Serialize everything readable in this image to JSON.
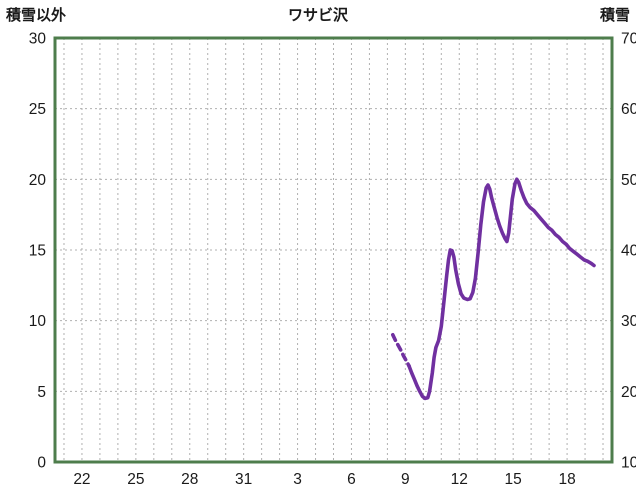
{
  "chart_data": {
    "type": "line",
    "title": "ワサビ沢",
    "left_axis_label": "積雪以外",
    "right_axis_label": "積雪",
    "x_domain": [
      20.5,
      51.5
    ],
    "x_grid_step": 1,
    "x_ticks": [
      22,
      25,
      28,
      31,
      34,
      37,
      40,
      43,
      46,
      49
    ],
    "x_tick_labels": [
      "22",
      "25",
      "28",
      "31",
      "3",
      "6",
      "9",
      "12",
      "15",
      "18"
    ],
    "y_left": {
      "min": 0,
      "max": 30,
      "tick_step": 5,
      "tick_labels": [
        "0",
        "5",
        "10",
        "15",
        "20",
        "25",
        "30"
      ]
    },
    "y_right": {
      "min": 10,
      "max": 70,
      "tick_step": 10,
      "tick_labels": [
        "10",
        "20",
        "30",
        "40",
        "50",
        "60",
        "70"
      ]
    },
    "colors": {
      "border": "#4e7d4c",
      "grid": "#b0b0b0",
      "line": "#7030A0",
      "text": "#1a1a1a",
      "background": "#ffffff"
    },
    "series": [
      {
        "name": "積雪-lead-in",
        "style": "dashed",
        "color": "#7030A0",
        "points": [
          [
            39.3,
            9.0
          ],
          [
            39.45,
            8.6
          ],
          [
            39.6,
            8.25
          ],
          [
            39.75,
            7.9
          ],
          [
            39.9,
            7.5
          ],
          [
            40.05,
            7.15
          ],
          [
            40.2,
            6.8
          ]
        ]
      },
      {
        "name": "積雪",
        "style": "solid",
        "color": "#7030A0",
        "points": [
          [
            40.2,
            6.8
          ],
          [
            40.35,
            6.3
          ],
          [
            40.5,
            5.85
          ],
          [
            40.65,
            5.4
          ],
          [
            40.8,
            5.0
          ],
          [
            40.95,
            4.65
          ],
          [
            41.1,
            4.5
          ],
          [
            41.25,
            4.55
          ],
          [
            41.35,
            5.0
          ],
          [
            41.5,
            6.3
          ],
          [
            41.6,
            7.4
          ],
          [
            41.7,
            8.1
          ],
          [
            41.85,
            8.6
          ],
          [
            42.0,
            9.6
          ],
          [
            42.1,
            10.8
          ],
          [
            42.2,
            12.0
          ],
          [
            42.3,
            13.2
          ],
          [
            42.4,
            14.3
          ],
          [
            42.5,
            15.0
          ],
          [
            42.6,
            14.95
          ],
          [
            42.7,
            14.5
          ],
          [
            42.8,
            13.6
          ],
          [
            42.95,
            12.6
          ],
          [
            43.1,
            11.9
          ],
          [
            43.25,
            11.6
          ],
          [
            43.45,
            11.5
          ],
          [
            43.6,
            11.55
          ],
          [
            43.75,
            12.0
          ],
          [
            43.9,
            13.0
          ],
          [
            44.05,
            14.8
          ],
          [
            44.2,
            16.8
          ],
          [
            44.35,
            18.4
          ],
          [
            44.5,
            19.4
          ],
          [
            44.6,
            19.6
          ],
          [
            44.7,
            19.3
          ],
          [
            44.8,
            18.7
          ],
          [
            44.95,
            18.0
          ],
          [
            45.1,
            17.3
          ],
          [
            45.25,
            16.7
          ],
          [
            45.4,
            16.2
          ],
          [
            45.55,
            15.8
          ],
          [
            45.65,
            15.6
          ],
          [
            45.75,
            16.2
          ],
          [
            45.85,
            17.4
          ],
          [
            45.95,
            18.6
          ],
          [
            46.1,
            19.7
          ],
          [
            46.2,
            20.0
          ],
          [
            46.3,
            19.8
          ],
          [
            46.45,
            19.2
          ],
          [
            46.6,
            18.7
          ],
          [
            46.75,
            18.3
          ],
          [
            46.95,
            18.0
          ],
          [
            47.15,
            17.8
          ],
          [
            47.35,
            17.5
          ],
          [
            47.55,
            17.2
          ],
          [
            47.75,
            16.9
          ],
          [
            47.95,
            16.6
          ],
          [
            48.15,
            16.4
          ],
          [
            48.35,
            16.1
          ],
          [
            48.55,
            15.9
          ],
          [
            48.75,
            15.6
          ],
          [
            48.95,
            15.4
          ],
          [
            49.15,
            15.1
          ],
          [
            49.35,
            14.9
          ],
          [
            49.55,
            14.7
          ],
          [
            49.75,
            14.5
          ],
          [
            49.95,
            14.3
          ],
          [
            50.15,
            14.2
          ],
          [
            50.35,
            14.05
          ],
          [
            50.5,
            13.9
          ]
        ]
      }
    ]
  }
}
